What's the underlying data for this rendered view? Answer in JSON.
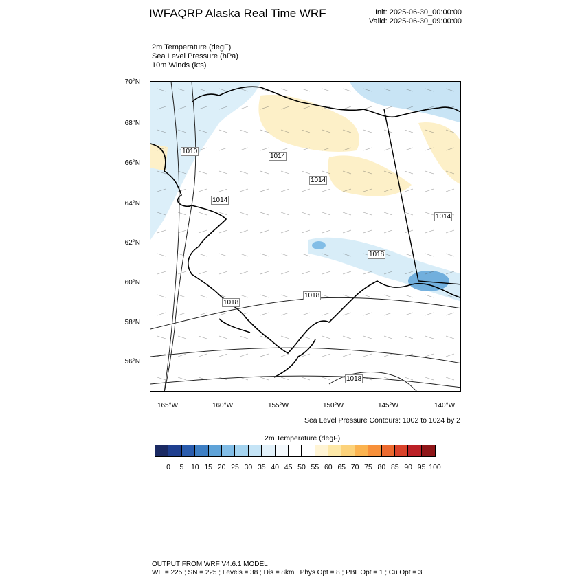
{
  "header": {
    "title": "IWFAQRP Alaska Real Time WRF",
    "init": "Init: 2025-06-30_00:00:00",
    "valid": "Valid: 2025-06-30_09:00:00"
  },
  "fields": {
    "line1": "2m Temperature   (degF)",
    "line2": "Sea Level Pressure   (hPa)",
    "line3": "10m Winds   (kts)"
  },
  "map": {
    "lat_labels": [
      "70°N",
      "68°N",
      "66°N",
      "64°N",
      "62°N",
      "60°N",
      "58°N",
      "56°N"
    ],
    "lon_labels": [
      "165°W",
      "160°W",
      "155°W",
      "150°W",
      "145°W",
      "140°W"
    ],
    "contour_labels": [
      "1010",
      "1014",
      "1014",
      "1014",
      "1014",
      "1018",
      "1018",
      "1018",
      "1018"
    ],
    "land_color": "#ffffff",
    "cool_color": "#d8edf8",
    "warm_color": "#fdf0c8"
  },
  "contour_note": "Sea Level Pressure Contours: 1002 to 1024 by 2",
  "colorbar": {
    "title": "2m Temperature  (degF)",
    "labels": [
      "0",
      "5",
      "10",
      "15",
      "20",
      "25",
      "30",
      "35",
      "40",
      "45",
      "50",
      "55",
      "60",
      "65",
      "70",
      "75",
      "80",
      "85",
      "90",
      "95",
      "100"
    ],
    "colors": [
      "#1b2a63",
      "#1f3f8f",
      "#2a5cad",
      "#3e7fc4",
      "#5fa3d8",
      "#82bde6",
      "#a5d4f0",
      "#c5e4f6",
      "#e2f1fa",
      "#f4f9fd",
      "#ffffff",
      "#ffffff",
      "#fff4d4",
      "#fde8a8",
      "#fcd27a",
      "#fbb34f",
      "#f7903a",
      "#ec6a2f",
      "#d9422a",
      "#bb2026",
      "#8e1518"
    ]
  },
  "footer": {
    "line1": "OUTPUT FROM WRF V4.6.1 MODEL",
    "line2": "WE = 225 ; SN = 225 ; Levels = 38 ; Dis = 8km ; Phys Opt = 8 ; PBL Opt = 1 ; Cu Opt = 3"
  }
}
